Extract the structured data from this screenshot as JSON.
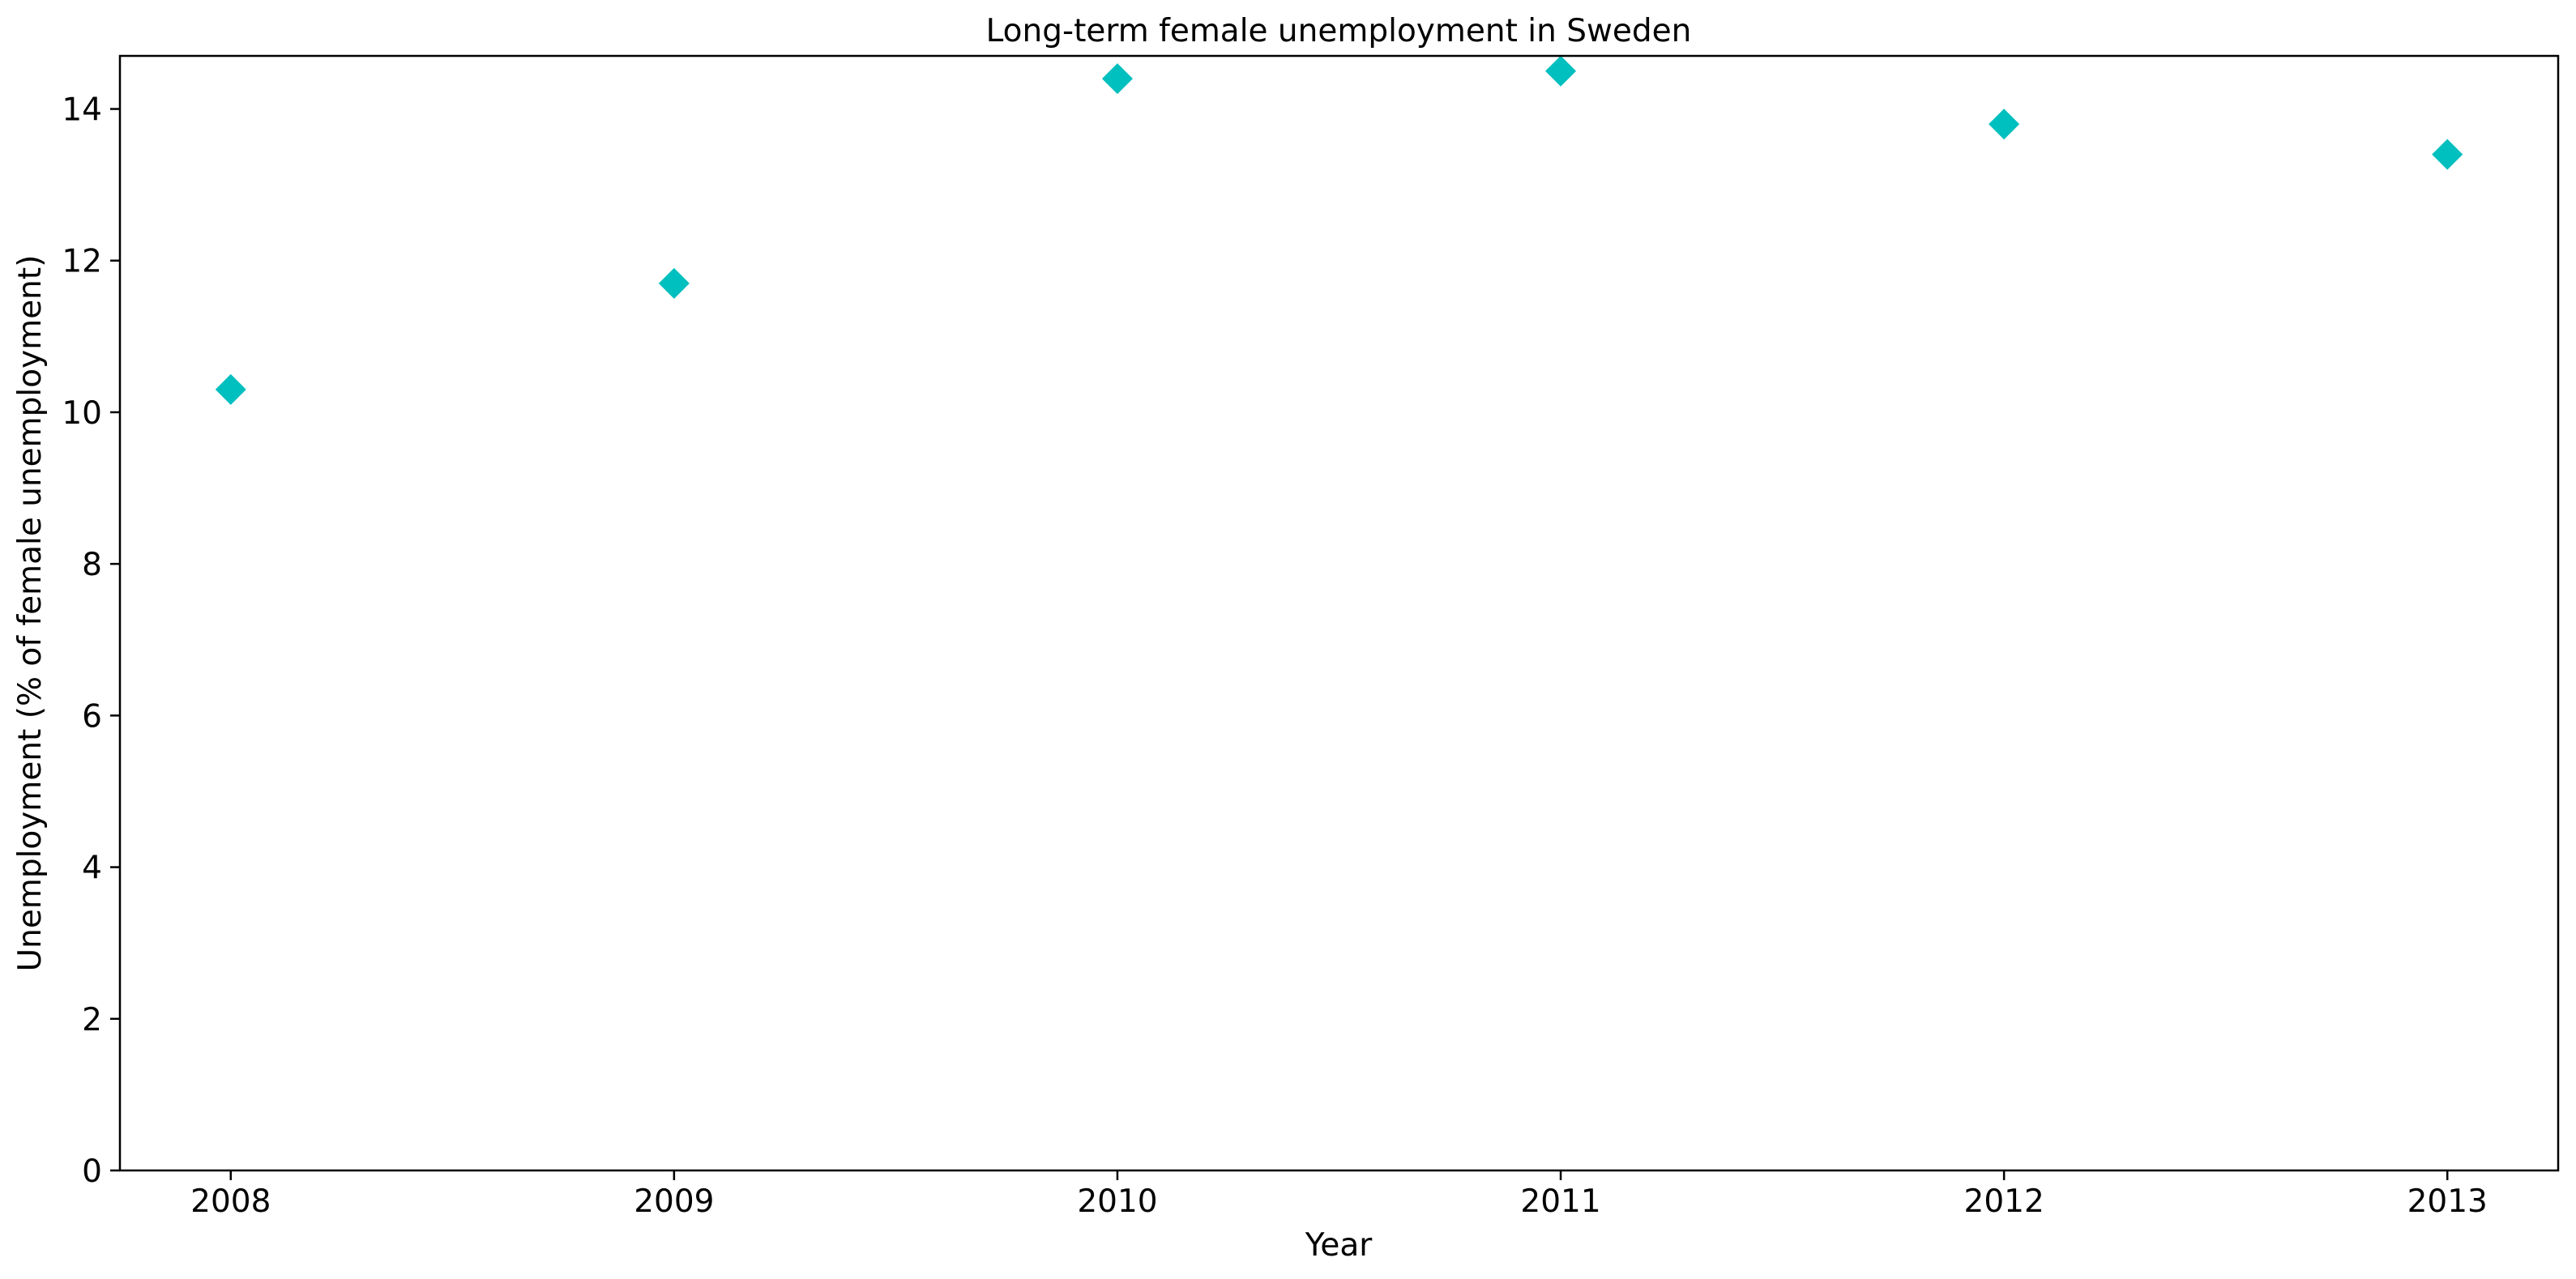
{
  "chart_data": {
    "type": "scatter",
    "title": "Long-term female unemployment in Sweden",
    "xlabel": "Year",
    "ylabel": "Unemployment (% of female unemployment)",
    "x": [
      2008,
      2009,
      2010,
      2011,
      2012,
      2013
    ],
    "y": [
      10.3,
      11.7,
      14.4,
      14.5,
      13.8,
      13.4
    ],
    "xticks": [
      "2008",
      "2009",
      "2010",
      "2011",
      "2012",
      "2013"
    ],
    "yticks": [
      "0",
      "2",
      "4",
      "6",
      "8",
      "10",
      "12",
      "14"
    ],
    "xlim": [
      2007.75,
      2013.25
    ],
    "ylim": [
      0,
      14.7
    ],
    "marker": "diamond",
    "marker_color": "#00bfbf",
    "grid": false,
    "legend": "none"
  }
}
